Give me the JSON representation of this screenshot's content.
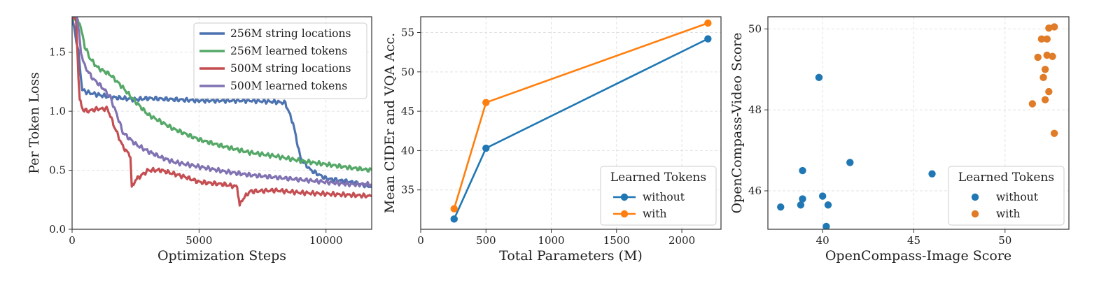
{
  "chart_data": [
    {
      "id": "loss",
      "type": "line",
      "xlabel": "Optimization Steps",
      "ylabel": "Per Token Loss",
      "xlim": [
        0,
        11800
      ],
      "ylim": [
        0,
        1.8
      ],
      "xticks": [
        0,
        5000,
        10000
      ],
      "yticks": [
        0.0,
        0.5,
        1.0,
        1.5
      ],
      "grid": true,
      "legend_position": "top-right",
      "series": [
        {
          "name": "256M string locations",
          "color": "#4c72b0",
          "x": [
            0,
            250,
            400,
            600,
            1000,
            1500,
            2000,
            2500,
            3000,
            4000,
            5000,
            6000,
            7000,
            8000,
            8400,
            8700,
            9000,
            9400,
            10000,
            11000,
            11800
          ],
          "y": [
            1.8,
            1.5,
            1.18,
            1.16,
            1.14,
            1.12,
            1.11,
            1.1,
            1.11,
            1.1,
            1.09,
            1.09,
            1.09,
            1.08,
            1.07,
            0.9,
            0.6,
            0.5,
            0.43,
            0.4,
            0.36
          ]
        },
        {
          "name": "256M learned tokens",
          "color": "#55a868",
          "x": [
            0,
            300,
            500,
            700,
            1000,
            1500,
            2000,
            2500,
            3000,
            4000,
            5000,
            6000,
            7000,
            8000,
            9000,
            10000,
            11000,
            11800
          ],
          "y": [
            1.8,
            1.75,
            1.55,
            1.45,
            1.37,
            1.31,
            1.2,
            1.08,
            0.97,
            0.85,
            0.76,
            0.7,
            0.65,
            0.62,
            0.58,
            0.55,
            0.52,
            0.5
          ]
        },
        {
          "name": "500M string locations",
          "color": "#c44e52",
          "x": [
            0,
            150,
            250,
            300,
            400,
            600,
            1000,
            1400,
            1700,
            2000,
            2300,
            2350,
            2500,
            3000,
            3500,
            4000,
            4500,
            5000,
            6000,
            6500,
            6600,
            6700,
            7000,
            8000,
            9000,
            10000,
            11000,
            11800
          ],
          "y": [
            1.8,
            1.8,
            1.3,
            1.1,
            1.02,
            1.0,
            1.02,
            1.02,
            0.85,
            0.7,
            0.62,
            0.35,
            0.42,
            0.5,
            0.5,
            0.47,
            0.44,
            0.4,
            0.38,
            0.36,
            0.2,
            0.25,
            0.32,
            0.33,
            0.31,
            0.3,
            0.29,
            0.28
          ]
        },
        {
          "name": "500M learned tokens",
          "color": "#8172b2",
          "x": [
            0,
            200,
            350,
            500,
            800,
            1200,
            1500,
            1800,
            2000,
            2500,
            3000,
            3500,
            4000,
            5000,
            6000,
            7000,
            8000,
            9000,
            10000,
            11000,
            11800
          ],
          "y": [
            1.8,
            1.8,
            1.5,
            1.38,
            1.28,
            1.2,
            1.12,
            0.95,
            0.82,
            0.72,
            0.66,
            0.61,
            0.57,
            0.53,
            0.49,
            0.46,
            0.44,
            0.42,
            0.4,
            0.38,
            0.38
          ]
        }
      ]
    },
    {
      "id": "params",
      "type": "line",
      "xlabel": "Total Parameters (M)",
      "ylabel": "Mean CIDEr and VQA Acc.",
      "xlim": [
        0,
        2300
      ],
      "ylim": [
        30,
        57
      ],
      "xticks": [
        0,
        500,
        1000,
        1500,
        2000
      ],
      "yticks": [
        35,
        40,
        45,
        50,
        55
      ],
      "grid": true,
      "legend_title": "Learned Tokens",
      "legend_position": "lower-right",
      "series": [
        {
          "name": "without",
          "color": "#1f77b4",
          "x": [
            256,
            500,
            2200
          ],
          "y": [
            31.3,
            40.3,
            54.2
          ]
        },
        {
          "name": "with",
          "color": "#ff7f0e",
          "x": [
            256,
            500,
            2200
          ],
          "y": [
            32.6,
            46.1,
            56.2
          ]
        }
      ]
    },
    {
      "id": "compass",
      "type": "scatter",
      "xlabel": "OpenCompass-Image Score",
      "ylabel": "OpenCompass-Video Score",
      "xlim": [
        37,
        53.5
      ],
      "ylim": [
        45.05,
        50.3
      ],
      "xticks": [
        40,
        45,
        50
      ],
      "yticks": [
        46,
        48,
        50
      ],
      "grid": true,
      "legend_title": "Learned Tokens",
      "legend_position": "lower-right",
      "series": [
        {
          "name": "without",
          "color": "#1f77b4",
          "points": [
            [
              37.7,
              45.6
            ],
            [
              38.8,
              45.65
            ],
            [
              38.9,
              45.8
            ],
            [
              38.9,
              46.5
            ],
            [
              39.8,
              48.8
            ],
            [
              40.0,
              45.87
            ],
            [
              40.3,
              45.65
            ],
            [
              40.2,
              45.12
            ],
            [
              41.5,
              46.7
            ],
            [
              46.0,
              46.42
            ]
          ]
        },
        {
          "name": "with",
          "color": "#e07b27",
          "points": [
            [
              51.5,
              48.15
            ],
            [
              51.8,
              49.3
            ],
            [
              52.0,
              49.75
            ],
            [
              52.1,
              48.8
            ],
            [
              52.2,
              49.0
            ],
            [
              52.2,
              48.25
            ],
            [
              52.3,
              49.35
            ],
            [
              52.3,
              49.75
            ],
            [
              52.4,
              48.45
            ],
            [
              52.4,
              50.02
            ],
            [
              52.6,
              49.32
            ],
            [
              52.7,
              50.05
            ],
            [
              52.7,
              47.42
            ]
          ]
        }
      ]
    }
  ]
}
